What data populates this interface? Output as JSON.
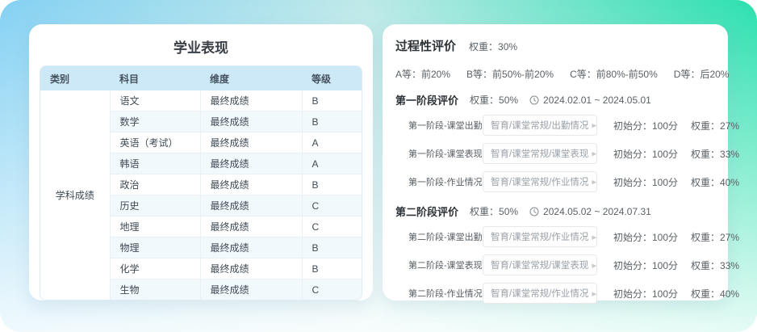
{
  "colors": {
    "bg_blue": "#84d1f3",
    "bg_green": "#2be0ae",
    "table_header_bg": "#cde9f8",
    "table_row_tint": "#f2f9fd",
    "card_bg": "#ffffff"
  },
  "left_card": {
    "title": "学业表现",
    "table": {
      "headers": [
        "类别",
        "科目",
        "维度",
        "等级"
      ],
      "category": "学科成绩",
      "rows": [
        {
          "subject": "语文",
          "dimension": "最终成绩",
          "grade": "B"
        },
        {
          "subject": "数学",
          "dimension": "最终成绩",
          "grade": "B"
        },
        {
          "subject": "英语（考试）",
          "dimension": "最终成绩",
          "grade": "A"
        },
        {
          "subject": "韩语",
          "dimension": "最终成绩",
          "grade": "A"
        },
        {
          "subject": "政治",
          "dimension": "最终成绩",
          "grade": "B"
        },
        {
          "subject": "历史",
          "dimension": "最终成绩",
          "grade": "C"
        },
        {
          "subject": "地理",
          "dimension": "最终成绩",
          "grade": "C"
        },
        {
          "subject": "物理",
          "dimension": "最终成绩",
          "grade": "B"
        },
        {
          "subject": "化学",
          "dimension": "最终成绩",
          "grade": "B"
        },
        {
          "subject": "生物",
          "dimension": "最终成绩",
          "grade": "C"
        }
      ]
    }
  },
  "right_card": {
    "title": "过程性评价",
    "weight": "权重：30%",
    "grade_scale": [
      "A等：前20%",
      "B等：前50%-前20%",
      "C等：前80%-前50%",
      "D等：后20%"
    ],
    "stages": [
      {
        "title": "第一阶段评价",
        "weight": "权重：50%",
        "date_range": "2024.02.01 ~ 2024.05.01",
        "rows": [
          {
            "label": "第一阶段-课堂出勤",
            "select": "智育/课堂常规/出勤情况",
            "initial": "初始分：100分",
            "weight": "权重：27%"
          },
          {
            "label": "第一阶段-课堂表现",
            "select": "智育/课堂常规/课堂表现",
            "initial": "初始分：100分",
            "weight": "权重：33%"
          },
          {
            "label": "第一阶段-作业情况",
            "select": "智育/课堂常规/作业情况",
            "initial": "初始分：100分",
            "weight": "权重：40%"
          }
        ]
      },
      {
        "title": "第二阶段评价",
        "weight": "权重：50%",
        "date_range": "2024.05.02 ~ 2024.07.31",
        "rows": [
          {
            "label": "第二阶段-课堂出勤",
            "select": "智育/课堂常规/作业情况",
            "initial": "初始分：100分",
            "weight": "权重：27%"
          },
          {
            "label": "第二阶段-课堂表现",
            "select": "智育/课堂常规/课堂表现",
            "initial": "初始分：100分",
            "weight": "权重：33%"
          },
          {
            "label": "第二阶段-作业情况",
            "select": "智育/课堂常规/作业情况",
            "initial": "初始分：100分",
            "weight": "权重：40%"
          }
        ]
      }
    ]
  }
}
